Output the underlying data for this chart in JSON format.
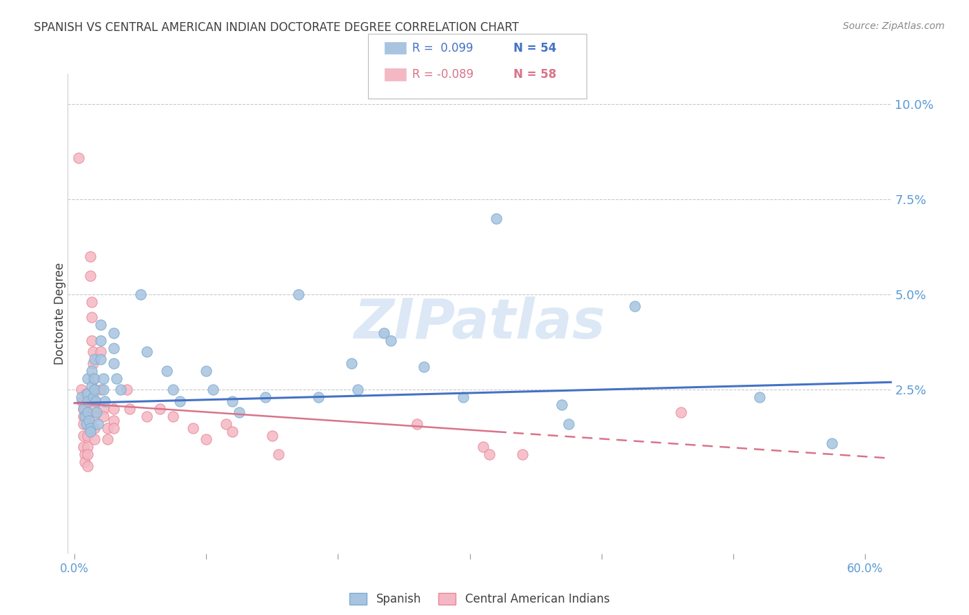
{
  "title": "SPANISH VS CENTRAL AMERICAN INDIAN DOCTORATE DEGREE CORRELATION CHART",
  "source": "Source: ZipAtlas.com",
  "xlabel_ticks": [
    "0.0%",
    "",
    "",
    "",
    "",
    "",
    "60.0%"
  ],
  "xlabel_vals": [
    0.0,
    0.1,
    0.2,
    0.3,
    0.4,
    0.5,
    0.6
  ],
  "xlabel_minor_vals": [
    0.1,
    0.2,
    0.3,
    0.4,
    0.5
  ],
  "ylabel": "Doctorate Degree",
  "ylabel_ticks": [
    "10.0%",
    "7.5%",
    "5.0%",
    "2.5%"
  ],
  "ylabel_vals": [
    0.1,
    0.075,
    0.05,
    0.025
  ],
  "xlim": [
    -0.005,
    0.62
  ],
  "ylim": [
    -0.018,
    0.108
  ],
  "series_names": [
    "Spanish",
    "Central American Indians"
  ],
  "series_colors": [
    "#a8c4e0",
    "#f4b8c4"
  ],
  "series_edge_colors": [
    "#7aadcf",
    "#e88898"
  ],
  "series_line_colors": [
    "#4472c4",
    "#d9738a"
  ],
  "watermark": "ZIPatlas",
  "blue_scatter": [
    [
      0.005,
      0.023
    ],
    [
      0.007,
      0.02
    ],
    [
      0.008,
      0.018
    ],
    [
      0.009,
      0.016
    ],
    [
      0.01,
      0.028
    ],
    [
      0.01,
      0.024
    ],
    [
      0.01,
      0.022
    ],
    [
      0.01,
      0.019
    ],
    [
      0.011,
      0.017
    ],
    [
      0.012,
      0.015
    ],
    [
      0.012,
      0.014
    ],
    [
      0.013,
      0.03
    ],
    [
      0.013,
      0.026
    ],
    [
      0.014,
      0.023
    ],
    [
      0.015,
      0.033
    ],
    [
      0.015,
      0.028
    ],
    [
      0.015,
      0.025
    ],
    [
      0.016,
      0.022
    ],
    [
      0.017,
      0.019
    ],
    [
      0.018,
      0.016
    ],
    [
      0.02,
      0.042
    ],
    [
      0.02,
      0.038
    ],
    [
      0.02,
      0.033
    ],
    [
      0.022,
      0.028
    ],
    [
      0.022,
      0.025
    ],
    [
      0.023,
      0.022
    ],
    [
      0.03,
      0.04
    ],
    [
      0.03,
      0.036
    ],
    [
      0.03,
      0.032
    ],
    [
      0.032,
      0.028
    ],
    [
      0.035,
      0.025
    ],
    [
      0.05,
      0.05
    ],
    [
      0.055,
      0.035
    ],
    [
      0.07,
      0.03
    ],
    [
      0.075,
      0.025
    ],
    [
      0.08,
      0.022
    ],
    [
      0.1,
      0.03
    ],
    [
      0.105,
      0.025
    ],
    [
      0.12,
      0.022
    ],
    [
      0.125,
      0.019
    ],
    [
      0.145,
      0.023
    ],
    [
      0.17,
      0.05
    ],
    [
      0.185,
      0.023
    ],
    [
      0.21,
      0.032
    ],
    [
      0.215,
      0.025
    ],
    [
      0.235,
      0.04
    ],
    [
      0.24,
      0.038
    ],
    [
      0.265,
      0.031
    ],
    [
      0.295,
      0.023
    ],
    [
      0.32,
      0.07
    ],
    [
      0.37,
      0.021
    ],
    [
      0.375,
      0.016
    ],
    [
      0.425,
      0.047
    ],
    [
      0.52,
      0.023
    ],
    [
      0.575,
      0.011
    ]
  ],
  "pink_scatter": [
    [
      0.003,
      0.086
    ],
    [
      0.005,
      0.025
    ],
    [
      0.006,
      0.022
    ],
    [
      0.007,
      0.02
    ],
    [
      0.007,
      0.018
    ],
    [
      0.007,
      0.016
    ],
    [
      0.007,
      0.013
    ],
    [
      0.007,
      0.01
    ],
    [
      0.008,
      0.008
    ],
    [
      0.008,
      0.006
    ],
    [
      0.009,
      0.024
    ],
    [
      0.009,
      0.02
    ],
    [
      0.009,
      0.018
    ],
    [
      0.01,
      0.016
    ],
    [
      0.01,
      0.013
    ],
    [
      0.01,
      0.01
    ],
    [
      0.01,
      0.008
    ],
    [
      0.01,
      0.005
    ],
    [
      0.012,
      0.06
    ],
    [
      0.012,
      0.055
    ],
    [
      0.013,
      0.048
    ],
    [
      0.013,
      0.044
    ],
    [
      0.013,
      0.038
    ],
    [
      0.014,
      0.035
    ],
    [
      0.014,
      0.032
    ],
    [
      0.014,
      0.028
    ],
    [
      0.015,
      0.025
    ],
    [
      0.015,
      0.022
    ],
    [
      0.015,
      0.02
    ],
    [
      0.015,
      0.018
    ],
    [
      0.015,
      0.015
    ],
    [
      0.015,
      0.012
    ],
    [
      0.02,
      0.035
    ],
    [
      0.02,
      0.025
    ],
    [
      0.022,
      0.02
    ],
    [
      0.022,
      0.018
    ],
    [
      0.025,
      0.015
    ],
    [
      0.025,
      0.012
    ],
    [
      0.03,
      0.02
    ],
    [
      0.03,
      0.017
    ],
    [
      0.03,
      0.015
    ],
    [
      0.04,
      0.025
    ],
    [
      0.042,
      0.02
    ],
    [
      0.055,
      0.018
    ],
    [
      0.065,
      0.02
    ],
    [
      0.075,
      0.018
    ],
    [
      0.09,
      0.015
    ],
    [
      0.1,
      0.012
    ],
    [
      0.115,
      0.016
    ],
    [
      0.12,
      0.014
    ],
    [
      0.15,
      0.013
    ],
    [
      0.155,
      0.008
    ],
    [
      0.26,
      0.016
    ],
    [
      0.31,
      0.01
    ],
    [
      0.315,
      0.008
    ],
    [
      0.34,
      0.008
    ],
    [
      0.46,
      0.019
    ]
  ],
  "blue_trend_solid": {
    "x_start": 0.0,
    "y_start": 0.0215,
    "x_end": 0.62,
    "y_end": 0.027
  },
  "pink_trend_solid": {
    "x_start": 0.0,
    "y_start": 0.0215,
    "x_end": 0.32,
    "y_end": 0.014
  },
  "pink_trend_dashed": {
    "x_start": 0.32,
    "y_start": 0.014,
    "x_end": 0.62,
    "y_end": 0.007
  },
  "title_color": "#404040",
  "axis_color": "#5b9bd5",
  "grid_color": "#c8c8c8",
  "background_color": "#ffffff",
  "watermark_color": "#dce8f5",
  "legend_r_colors": [
    "#4472c4",
    "#d9738a"
  ],
  "legend_box_colors": [
    "#a8c4e0",
    "#f4b8c4"
  ]
}
